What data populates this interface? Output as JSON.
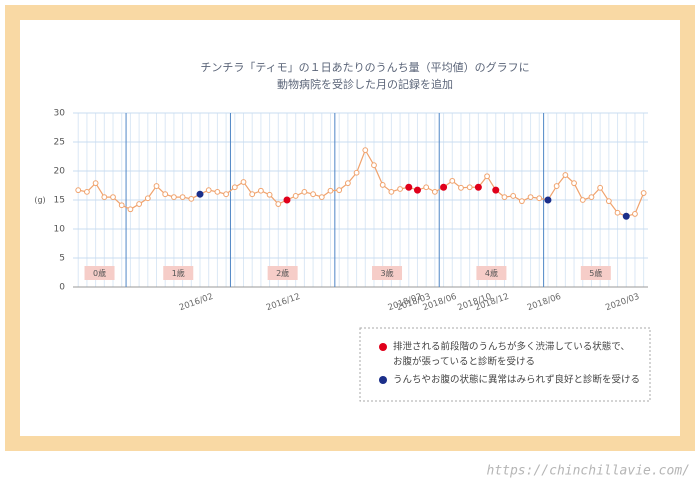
{
  "chart_data": {
    "type": "line",
    "title_lines": [
      "チンチラ「ティモ」の１日あたりのうんち量（平均値）のグラフに",
      "動物病院を受診した月の記録を追加"
    ],
    "y_label": "(g)",
    "categories": [
      null,
      null,
      null,
      null,
      null,
      null,
      null,
      null,
      null,
      null,
      null,
      null,
      null,
      null,
      null,
      "2016/02",
      null,
      null,
      null,
      null,
      null,
      null,
      null,
      null,
      null,
      "2016/12",
      null,
      null,
      null,
      null,
      null,
      null,
      null,
      null,
      null,
      null,
      null,
      null,
      null,
      "2018/02",
      "2018/03",
      null,
      null,
      "2018/06",
      null,
      null,
      null,
      "2018/10",
      null,
      "2018/12",
      null,
      null,
      null,
      null,
      null,
      "2018/06",
      null,
      null,
      null,
      null,
      null,
      null,
      null,
      null,
      "2020/03",
      null
    ],
    "series": [
      {
        "color": "#f0a36e",
        "values": [
          16.7,
          16.4,
          17.9,
          15.5,
          15.5,
          14.1,
          13.4,
          14.3,
          15.3,
          17.4,
          16,
          15.5,
          15.5,
          15.2,
          16,
          16.7,
          16.4,
          16,
          17.2,
          18.1,
          16,
          16.6,
          15.9,
          14.3,
          15,
          15.7,
          16.4,
          16,
          15.5,
          16.6,
          16.7,
          17.9,
          19.7,
          23.6,
          21,
          17.6,
          16.4,
          16.9,
          17.2,
          16.7,
          17.2,
          16.4,
          17.2,
          18.3,
          17.1,
          17.2,
          17.2,
          19.1,
          16.7,
          15.5,
          15.7,
          14.8,
          15.5,
          15.3,
          15,
          17.4,
          19.3,
          17.9,
          15,
          15.5,
          17.1,
          14.8,
          12.8,
          12.2,
          12.6,
          16.2
        ],
        "marker_colors": [
          "#ffffff",
          "#ffffff",
          "#ffffff",
          "#ffffff",
          "#ffffff",
          "#ffffff",
          "#ffffff",
          "#ffffff",
          "#ffffff",
          "#ffffff",
          "#ffffff",
          "#ffffff",
          "#ffffff",
          "#ffffff",
          "#1b2f8a",
          "#ffffff",
          "#ffffff",
          "#ffffff",
          "#ffffff",
          "#ffffff",
          "#ffffff",
          "#ffffff",
          "#ffffff",
          "#ffffff",
          "#e0001b",
          "#ffffff",
          "#ffffff",
          "#ffffff",
          "#ffffff",
          "#ffffff",
          "#ffffff",
          "#ffffff",
          "#ffffff",
          "#ffffff",
          "#ffffff",
          "#ffffff",
          "#ffffff",
          "#ffffff",
          "#e0001b",
          "#e0001b",
          "#ffffff",
          "#ffffff",
          "#e0001b",
          "#ffffff",
          "#ffffff",
          "#ffffff",
          "#e0001b",
          "#ffffff",
          "#e0001b",
          "#ffffff",
          "#ffffff",
          "#ffffff",
          "#ffffff",
          "#ffffff",
          "#1b2f8a",
          "#ffffff",
          "#ffffff",
          "#ffffff",
          "#ffffff",
          "#ffffff",
          "#ffffff",
          "#ffffff",
          "#ffffff",
          "#1b2f8a",
          "#ffffff",
          "#ffffff"
        ]
      }
    ],
    "xlim": [
      -0.6,
      65.5
    ],
    "ylim": [
      0,
      30
    ],
    "yticks": [
      0,
      5,
      10,
      15,
      20,
      25,
      30
    ],
    "grid": true,
    "divider_color": "#4f86c6",
    "age_bands": [
      {
        "label": "0歳",
        "from": 0,
        "to": 5
      },
      {
        "label": "1歳",
        "from": 6,
        "to": 17
      },
      {
        "label": "2歳",
        "from": 18,
        "to": 29
      },
      {
        "label": "3歳",
        "from": 30,
        "to": 41
      },
      {
        "label": "4歳",
        "from": 42,
        "to": 53
      },
      {
        "label": "5歳",
        "from": 54,
        "to": 65
      }
    ],
    "legend": [
      {
        "color": "#e0001b",
        "lines": [
          "排泄される前段階のうんちが多く渋滞している状態で、",
          "お腹が張っていると診断を受ける"
        ]
      },
      {
        "color": "#1b2f8a",
        "lines": [
          "うんちやお腹の状態に異常はみられず良好と診断を受ける"
        ]
      }
    ]
  },
  "watermark": "https://chinchillavie.com/"
}
